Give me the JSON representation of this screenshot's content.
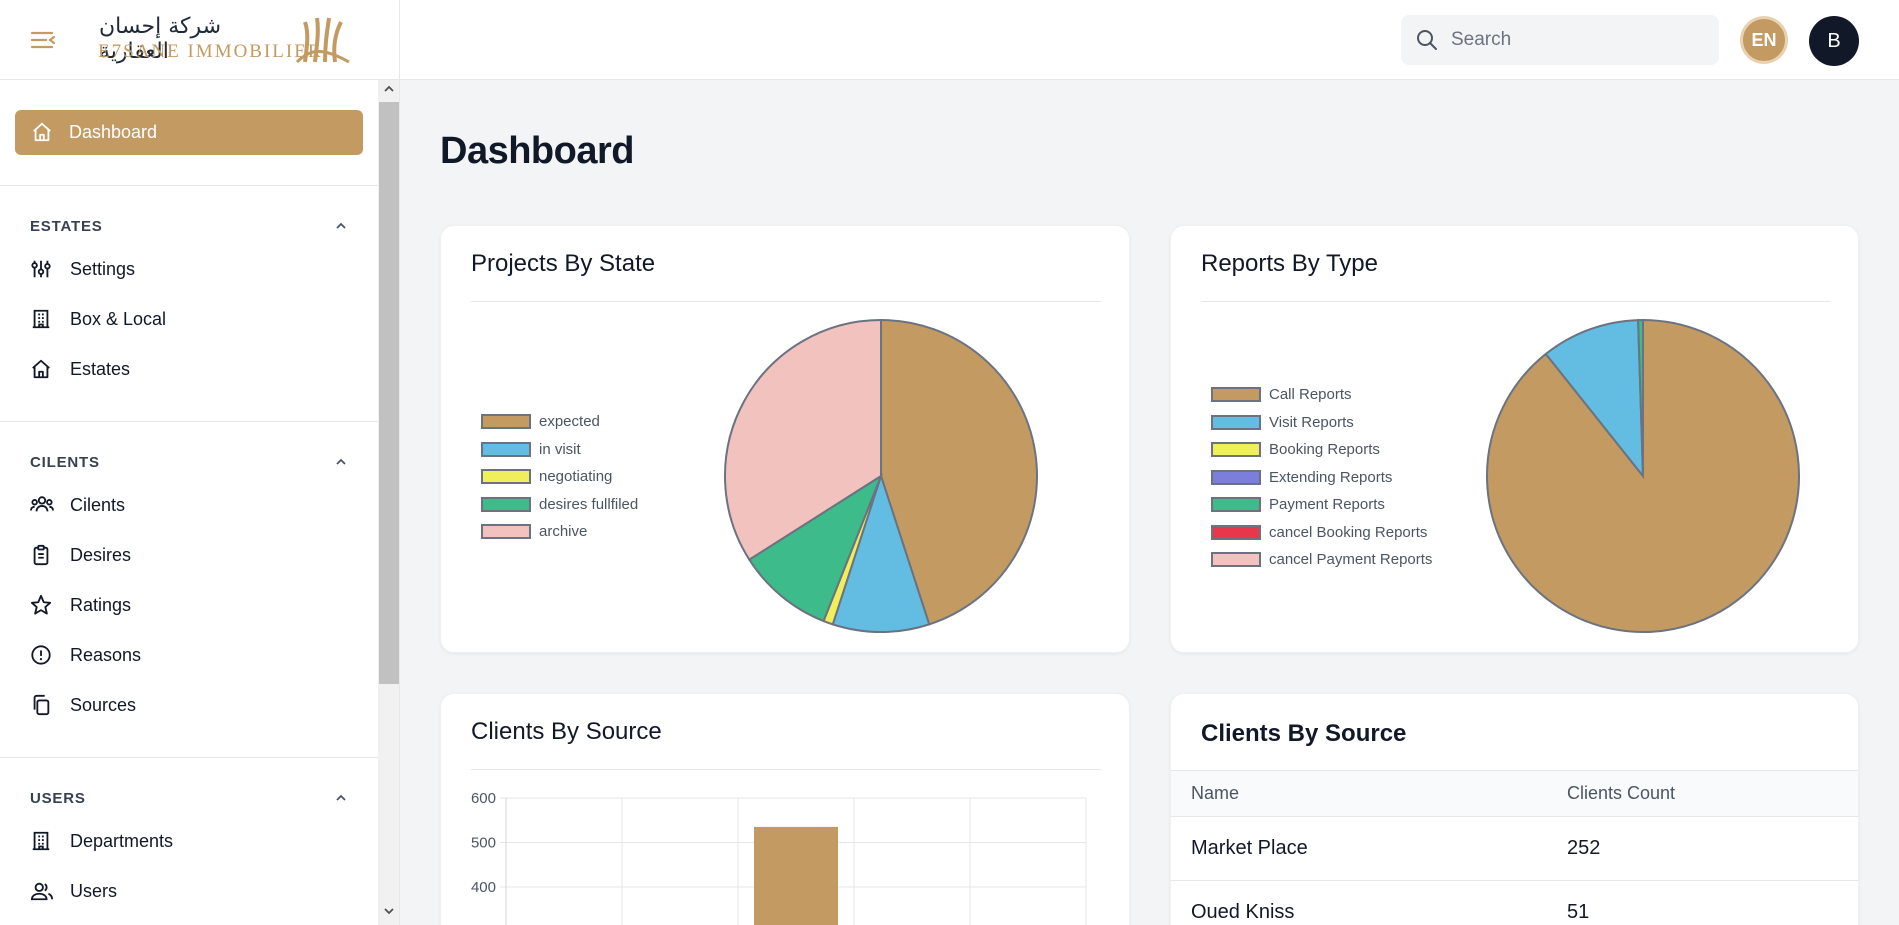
{
  "header": {
    "logo_arabic": "شركة إحسان العقارية",
    "logo_latin": "E7SANE IMMOBILIER",
    "search_placeholder": "Search",
    "lang": "EN",
    "avatar_initial": "B"
  },
  "sidebar": {
    "active": "Dashboard",
    "sections": [
      {
        "title": "ESTATES",
        "items": [
          {
            "label": "Settings",
            "icon": "sliders-icon"
          },
          {
            "label": "Box & Local",
            "icon": "building-icon"
          },
          {
            "label": "Estates",
            "icon": "home-icon"
          }
        ]
      },
      {
        "title": "CILENTS",
        "items": [
          {
            "label": "Cilents",
            "icon": "users-group-icon"
          },
          {
            "label": "Desires",
            "icon": "clipboard-icon"
          },
          {
            "label": "Ratings",
            "icon": "star-icon"
          },
          {
            "label": "Reasons",
            "icon": "alert-circle-icon"
          },
          {
            "label": "Sources",
            "icon": "copy-icon"
          }
        ]
      },
      {
        "title": "USERS",
        "items": [
          {
            "label": "Departments",
            "icon": "building-icon"
          },
          {
            "label": "Users",
            "icon": "user-group-icon"
          }
        ]
      }
    ]
  },
  "main": {
    "title": "Dashboard",
    "cards": {
      "projects_title": "Projects By State",
      "reports_title": "Reports By Type",
      "clients_chart_title": "Clients By Source",
      "clients_table_title": "Clients By Source"
    },
    "table": {
      "headers": [
        "Name",
        "Clients Count"
      ],
      "rows": [
        [
          "Market Place",
          "252"
        ],
        [
          "Oued Kniss",
          "51"
        ]
      ]
    }
  },
  "colors": {
    "accent": "#c49a63",
    "blue": "#63bde3",
    "yellow": "#f0ee5a",
    "purple": "#7b7fdb",
    "green": "#3dbb8b",
    "red": "#e8364a",
    "pink": "#f2c2bf"
  },
  "chart_data": [
    {
      "type": "pie",
      "title": "Projects By State",
      "labels": [
        "expected",
        "in visit",
        "negotiating",
        "desires fullfiled",
        "archive"
      ],
      "values": [
        45,
        10,
        1,
        10,
        34
      ],
      "colors": [
        "#c49a63",
        "#63bde3",
        "#f0ee5a",
        "#3dbb8b",
        "#f2c2bf"
      ],
      "legend": "left"
    },
    {
      "type": "pie",
      "title": "Reports By Type",
      "labels": [
        "Call Reports",
        "Visit Reports",
        "Booking Reports",
        "Extending Reports",
        "Payment Reports",
        "cancel Booking Reports",
        "cancel Payment Reports"
      ],
      "values": [
        89.3,
        10.2,
        0,
        0,
        0.5,
        0,
        0
      ],
      "colors": [
        "#c49a63",
        "#63bde3",
        "#f0ee5a",
        "#7b7fdb",
        "#3dbb8b",
        "#e8364a",
        "#f2c2bf"
      ],
      "legend": "left"
    },
    {
      "type": "bar",
      "title": "Clients By Source",
      "yticks": [
        400,
        500,
        600
      ],
      "ylim": [
        0,
        600
      ],
      "categories": [
        "",
        "",
        "",
        "",
        ""
      ],
      "values": [
        0,
        0,
        535,
        0,
        0
      ],
      "grid": true
    }
  ]
}
